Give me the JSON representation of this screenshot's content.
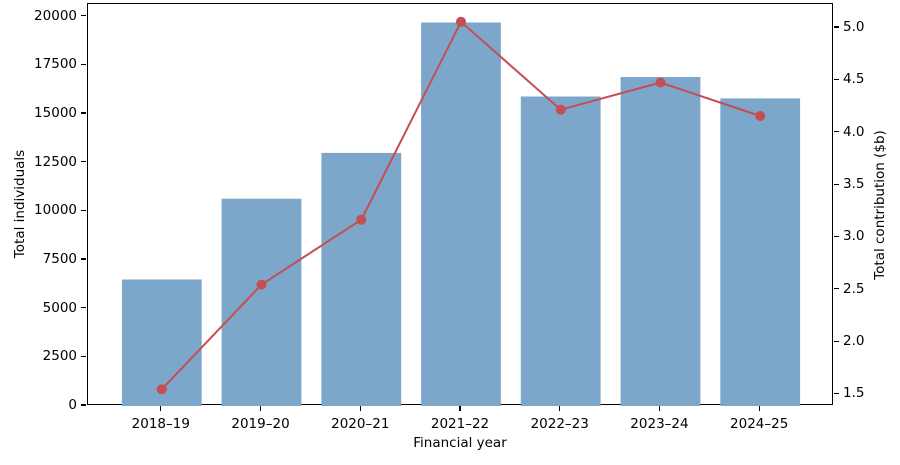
{
  "figure": {
    "background": "#ffffff",
    "text_color": "#000000",
    "spine_color": "#000000"
  },
  "chart_data": {
    "type": "bar+line dual-axis combo",
    "title": "",
    "categories": [
      "2018–19",
      "2019–20",
      "2020–21",
      "2021–22",
      "2022–23",
      "2023–24",
      "2024–25"
    ],
    "series": [
      {
        "name": "Total individuals",
        "type": "bar",
        "axis": "left",
        "color": "#7da7ca",
        "values": [
          6500,
          10650,
          13000,
          19700,
          15900,
          16900,
          15800
        ]
      },
      {
        "name": "Total contribution ($b)",
        "type": "line",
        "axis": "right",
        "color": "#c44e52",
        "marker": "circle",
        "marker_radius": 5,
        "line_width": 2,
        "values": [
          1.55,
          2.55,
          3.17,
          5.06,
          4.22,
          4.48,
          4.16
        ]
      }
    ],
    "xlabel": "Financial year",
    "ylabel_left": "Total individuals",
    "ylabel_right": "Total contribution ($b)",
    "x_axis": {
      "min": -0.74,
      "max": 6.74,
      "bar_width_units": 0.8
    },
    "left_axis": {
      "min": 0,
      "max": 20650,
      "tick_values": [
        0,
        2500,
        5000,
        7500,
        10000,
        12500,
        15000,
        17500,
        20000
      ],
      "tick_labels": [
        "0",
        "2500",
        "5000",
        "7500",
        "10000",
        "12500",
        "15000",
        "17500",
        "20000"
      ]
    },
    "right_axis": {
      "min": 1.39,
      "max": 5.23,
      "tick_values": [
        1.5,
        2.0,
        2.5,
        3.0,
        3.5,
        4.0,
        4.5,
        5.0
      ],
      "tick_labels": [
        "1.5",
        "2.0",
        "2.5",
        "3.0",
        "3.5",
        "4.0",
        "4.5",
        "5.0"
      ]
    },
    "grid": false,
    "legend": "none"
  }
}
